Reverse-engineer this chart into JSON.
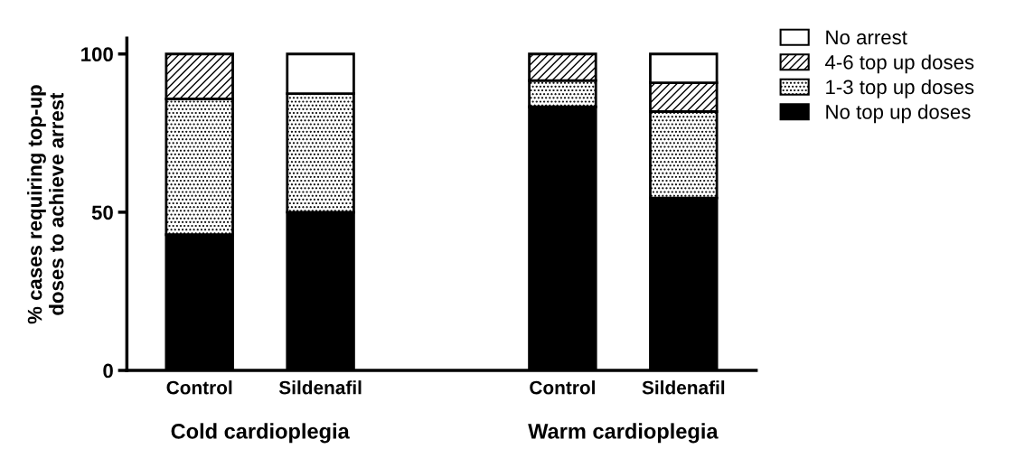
{
  "chart_data": {
    "type": "bar",
    "stacked": true,
    "ylabel": "% cases requiring top-up\ndoses to achieve arrest",
    "categories": [
      "Control",
      "Sildenafil",
      null,
      "Control",
      "Sildenafil"
    ],
    "series": [
      {
        "name": "No top up doses",
        "color": "#000000",
        "values": [
          42.9,
          50,
          null,
          83.3,
          54.5
        ]
      },
      {
        "name": "1-3 top up doses",
        "color": "#000000",
        "values": [
          42.9,
          37.5,
          null,
          8.3,
          27.3
        ]
      },
      {
        "name": "4-6 top up doses",
        "color": "#000000",
        "values": [
          14.2,
          0,
          null,
          8.4,
          9.1
        ]
      },
      {
        "name": "No arrest",
        "color": "#ffffff",
        "values": [
          0,
          12.5,
          null,
          0,
          9.1
        ]
      }
    ],
    "ylim": [
      0,
      105
    ],
    "yticks": [
      0,
      50,
      100
    ],
    "grid": false,
    "legend": "top right",
    "annotations": [
      "Cold cardioplegia",
      "Warm cardioplegia"
    ]
  }
}
